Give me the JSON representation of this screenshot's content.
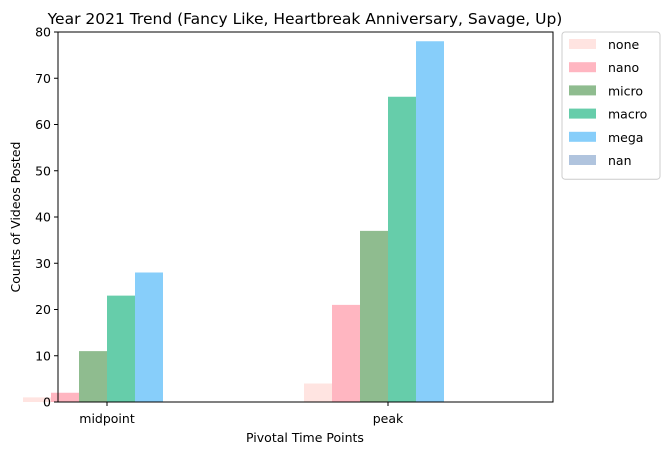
{
  "chart_data": {
    "type": "bar",
    "title": "Year 2021 Trend (Fancy Like, Heartbreak Anniversary, Savage, Up)",
    "xlabel": "Pivotal Time Points",
    "ylabel": "Counts of Videos Posted",
    "ylim": [
      0,
      80
    ],
    "yticks": [
      0,
      10,
      20,
      30,
      40,
      50,
      60,
      70,
      80
    ],
    "categories": [
      "midpoint",
      "peak"
    ],
    "series": [
      {
        "name": "none",
        "color": "#ffe4e1",
        "values": [
          1,
          4
        ]
      },
      {
        "name": "nano",
        "color": "#ffb6c1",
        "values": [
          2,
          21
        ]
      },
      {
        "name": "micro",
        "color": "#8fbc8f",
        "values": [
          11,
          37
        ]
      },
      {
        "name": "macro",
        "color": "#66cdaa",
        "values": [
          23,
          66
        ]
      },
      {
        "name": "mega",
        "color": "#87cefa",
        "values": [
          28,
          78
        ]
      },
      {
        "name": "nan",
        "color": "#b0c4de",
        "values": [
          0,
          0
        ]
      }
    ],
    "grid": false,
    "legend": "outside top-right"
  }
}
